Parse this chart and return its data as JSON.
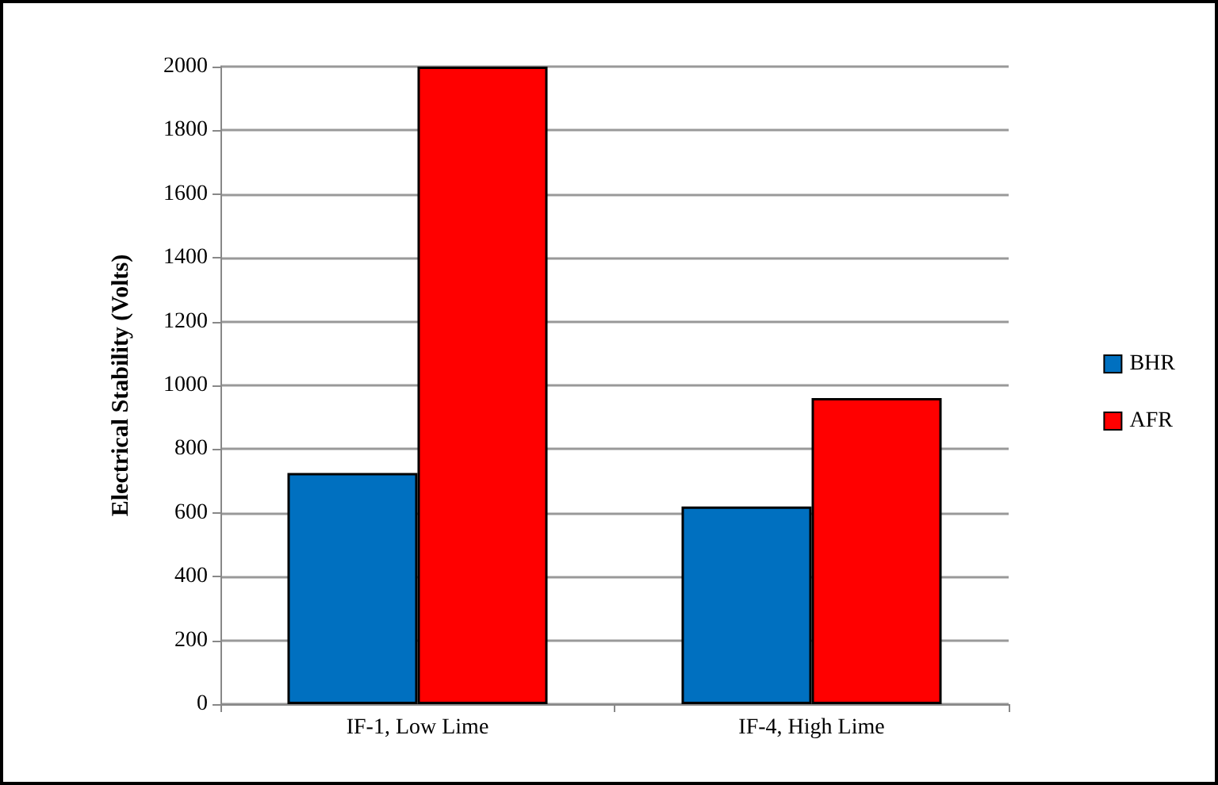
{
  "chart_data": {
    "type": "bar",
    "ylabel": "Electrical Stability (Volts)",
    "categories": [
      "IF-1, Low Lime",
      "IF-4, High Lime"
    ],
    "series": [
      {
        "name": "BHR",
        "color": "#0070c0",
        "values": [
          725,
          620
        ]
      },
      {
        "name": "AFR",
        "color": "#ff0000",
        "values": [
          2000,
          960
        ]
      }
    ],
    "ylim": [
      0,
      2000
    ],
    "yticks": [
      0,
      200,
      400,
      600,
      800,
      1000,
      1200,
      1400,
      1600,
      1800,
      2000
    ],
    "grid": "y",
    "legend": "right"
  }
}
